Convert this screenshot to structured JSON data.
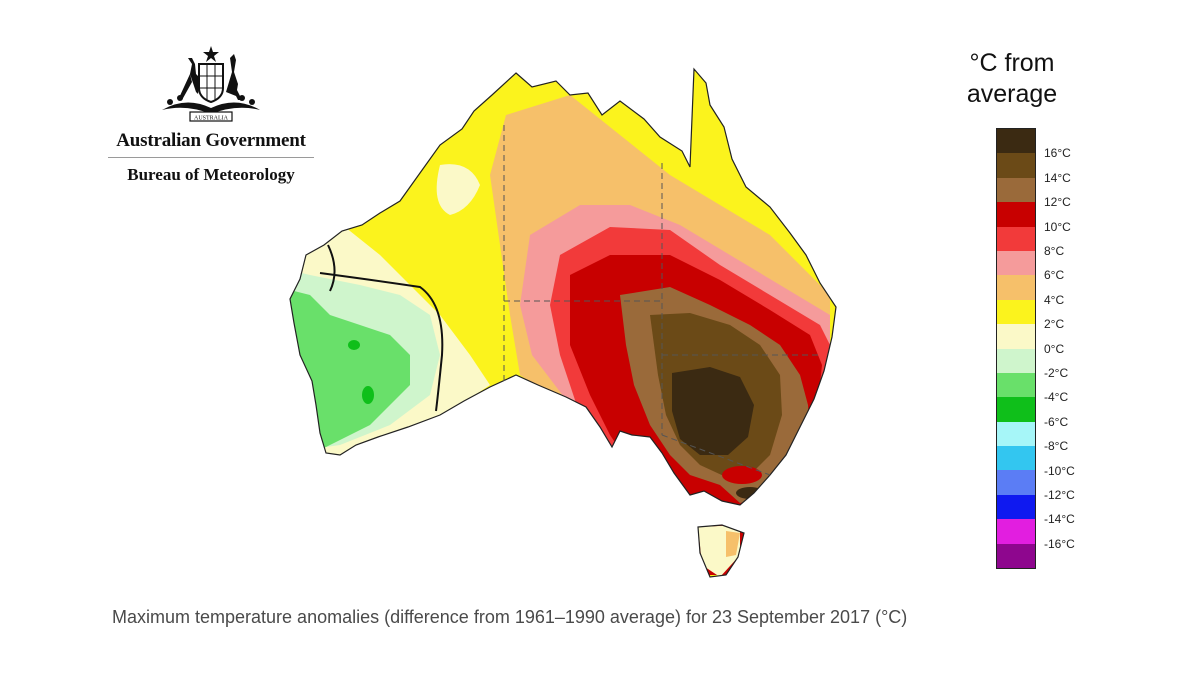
{
  "header": {
    "org_name": "Australian Government",
    "agency": "Bureau of Meteorology",
    "crest_motto": "AUSTRALIA"
  },
  "legend": {
    "title_line1": "°C from",
    "title_line2": "average",
    "bands": [
      {
        "color": "#3b2a12"
      },
      {
        "color": "#6b4a17"
      },
      {
        "color": "#9a6a3a"
      },
      {
        "color": "#c80000"
      },
      {
        "color": "#f23a3a"
      },
      {
        "color": "#f59b9b"
      },
      {
        "color": "#f6c06a"
      },
      {
        "color": "#fbf31d"
      },
      {
        "color": "#fbf9c8"
      },
      {
        "color": "#cff5cc"
      },
      {
        "color": "#69e06a"
      },
      {
        "color": "#0fbf1a"
      },
      {
        "color": "#a6f6f8"
      },
      {
        "color": "#33c6f0"
      },
      {
        "color": "#5b7df5"
      },
      {
        "color": "#0f19f0"
      },
      {
        "color": "#e21ee0"
      },
      {
        "color": "#8e068e"
      }
    ],
    "ticks": [
      "16°C",
      "14°C",
      "12°C",
      "10°C",
      "8°C",
      "6°C",
      "4°C",
      "2°C",
      "0°C",
      "-2°C",
      "-4°C",
      "-6°C",
      "-8°C",
      "-10°C",
      "-12°C",
      "-14°C",
      "-16°C"
    ]
  },
  "map": {
    "region": "Australia",
    "zone_colors": {
      "land_outline": "#222222",
      "grey_dashed_state_borders": "#555555"
    }
  },
  "caption": "Maximum temperature anomalies (difference from 1961–1990 average) for 23 September 2017 (°C)"
}
